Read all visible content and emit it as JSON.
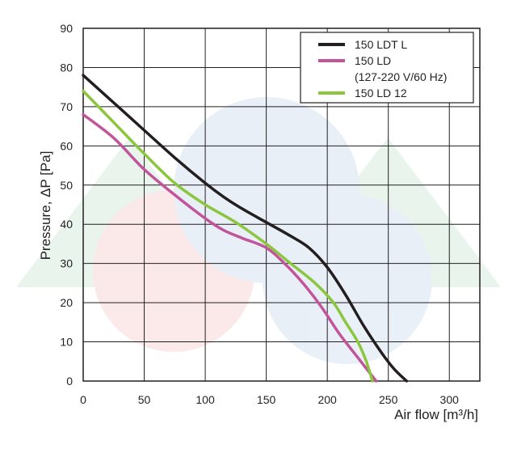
{
  "chart_data": {
    "type": "line",
    "xlabel": "Air flow [m³/h]",
    "ylabel": "Pressure, ΔP [Pa]",
    "xlim": [
      0,
      325
    ],
    "ylim": [
      0,
      90
    ],
    "x_ticks": [
      0,
      50,
      100,
      150,
      200,
      250,
      300
    ],
    "y_ticks": [
      0,
      10,
      20,
      30,
      40,
      50,
      60,
      70,
      80,
      90
    ],
    "grid": true,
    "legend_position": "top-right",
    "series": [
      {
        "name": "150 LDT L",
        "legend_lines": [
          "150 LDT L"
        ],
        "color": "#231f20",
        "points": [
          [
            0,
            78
          ],
          [
            25,
            71
          ],
          [
            50,
            64
          ],
          [
            75,
            57
          ],
          [
            100,
            50.5
          ],
          [
            115,
            47
          ],
          [
            130,
            44
          ],
          [
            150,
            40.5
          ],
          [
            170,
            37
          ],
          [
            185,
            34
          ],
          [
            200,
            29
          ],
          [
            215,
            22
          ],
          [
            230,
            14
          ],
          [
            245,
            7
          ],
          [
            255,
            3
          ],
          [
            265,
            0
          ]
        ]
      },
      {
        "name": "150 LD (127-220 V/60 Hz)",
        "legend_lines": [
          "150 LD",
          "(127-220 V/60 Hz)"
        ],
        "color": "#c2549c",
        "points": [
          [
            0,
            68
          ],
          [
            25,
            62
          ],
          [
            50,
            54
          ],
          [
            75,
            47.5
          ],
          [
            100,
            41.5
          ],
          [
            115,
            38.5
          ],
          [
            130,
            36.5
          ],
          [
            150,
            34
          ],
          [
            165,
            30
          ],
          [
            180,
            25
          ],
          [
            195,
            19
          ],
          [
            210,
            12
          ],
          [
            225,
            6
          ],
          [
            240,
            0
          ]
        ]
      },
      {
        "name": "150 LD 12",
        "legend_lines": [
          "150 LD 12"
        ],
        "color": "#8cc63f",
        "points": [
          [
            0,
            74
          ],
          [
            25,
            66
          ],
          [
            50,
            58
          ],
          [
            75,
            50.5
          ],
          [
            100,
            45
          ],
          [
            125,
            40.5
          ],
          [
            150,
            35
          ],
          [
            170,
            30
          ],
          [
            190,
            25
          ],
          [
            205,
            20
          ],
          [
            215,
            15
          ],
          [
            225,
            10
          ],
          [
            232,
            5
          ],
          [
            237,
            0
          ]
        ]
      }
    ]
  },
  "watermark": "ventilation logo"
}
